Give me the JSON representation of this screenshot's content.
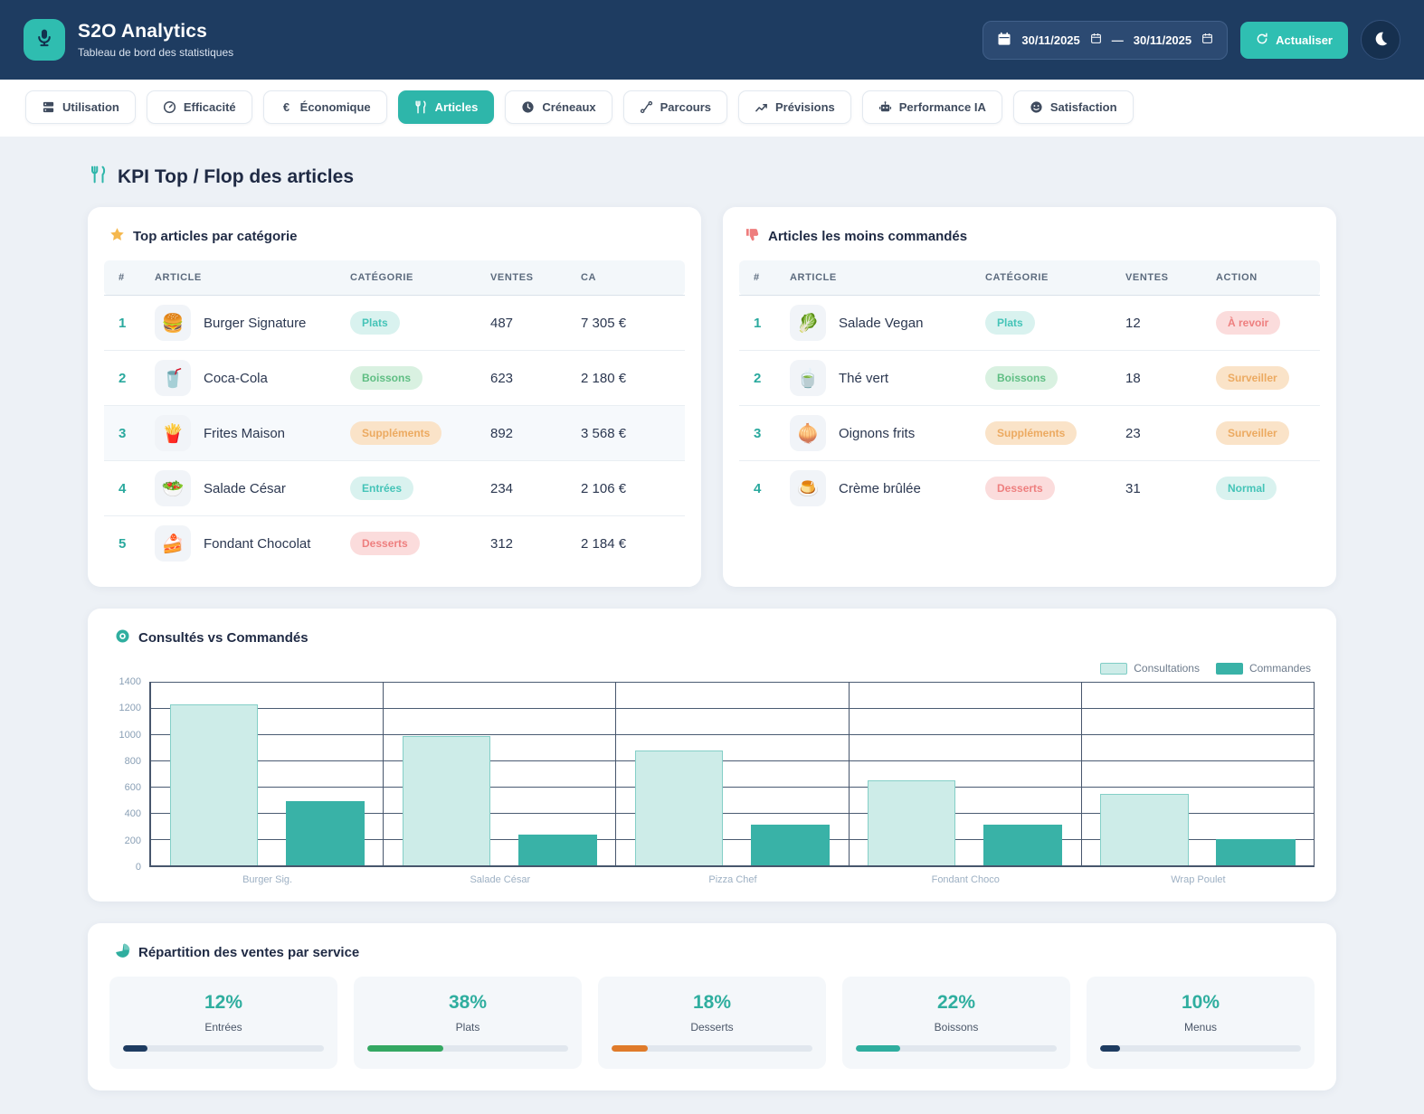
{
  "header": {
    "app_title": "S2O Analytics",
    "subtitle": "Tableau de bord des statistiques",
    "date_from": "30/11/2025",
    "date_to": "30/11/2025",
    "date_separator": "—",
    "refresh_label": "Actualiser",
    "bg_color": "#1e3c61",
    "accent_color": "#2fbdb0"
  },
  "tabs": [
    {
      "id": "utilisation",
      "label": "Utilisation",
      "icon": "server-icon",
      "active": false
    },
    {
      "id": "efficacite",
      "label": "Efficacité",
      "icon": "gauge-icon",
      "active": false
    },
    {
      "id": "economique",
      "label": "Économique",
      "icon": "euro-icon",
      "active": false
    },
    {
      "id": "articles",
      "label": "Articles",
      "icon": "cutlery-icon",
      "active": true
    },
    {
      "id": "creneaux",
      "label": "Créneaux",
      "icon": "clock-icon",
      "active": false
    },
    {
      "id": "parcours",
      "label": "Parcours",
      "icon": "route-icon",
      "active": false
    },
    {
      "id": "previsions",
      "label": "Prévisions",
      "icon": "trend-icon",
      "active": false
    },
    {
      "id": "performance-ia",
      "label": "Performance IA",
      "icon": "robot-icon",
      "active": false
    },
    {
      "id": "satisfaction",
      "label": "Satisfaction",
      "icon": "smiley-icon",
      "active": false
    }
  ],
  "section_title": "KPI Top / Flop des articles",
  "top_articles": {
    "title": "Top articles par catégorie",
    "columns": [
      "#",
      "ARTICLE",
      "CATÉGORIE",
      "VENTES",
      "CA"
    ],
    "rows": [
      {
        "rank": "1",
        "emoji": "🍔",
        "name": "Burger Signature",
        "category": "Plats",
        "category_type": "teal",
        "ventes": "487",
        "ca": "7 305 €",
        "highlight": false
      },
      {
        "rank": "2",
        "emoji": "🥤",
        "name": "Coca-Cola",
        "category": "Boissons",
        "category_type": "green",
        "ventes": "623",
        "ca": "2 180 €",
        "highlight": false
      },
      {
        "rank": "3",
        "emoji": "🍟",
        "name": "Frites Maison",
        "category": "Suppléments",
        "category_type": "orange",
        "ventes": "892",
        "ca": "3 568 €",
        "highlight": true
      },
      {
        "rank": "4",
        "emoji": "🥗",
        "name": "Salade César",
        "category": "Entrées",
        "category_type": "teal",
        "ventes": "234",
        "ca": "2 106 €",
        "highlight": false
      },
      {
        "rank": "5",
        "emoji": "🍰",
        "name": "Fondant Chocolat",
        "category": "Desserts",
        "category_type": "red",
        "ventes": "312",
        "ca": "2 184 €",
        "highlight": false
      }
    ]
  },
  "flop_articles": {
    "title": "Articles les moins commandés",
    "columns": [
      "#",
      "ARTICLE",
      "CATÉGORIE",
      "VENTES",
      "ACTION"
    ],
    "rows": [
      {
        "rank": "1",
        "emoji": "🥬",
        "name": "Salade Vegan",
        "category": "Plats",
        "category_type": "teal",
        "ventes": "12",
        "action": "À revoir",
        "action_type": "red"
      },
      {
        "rank": "2",
        "emoji": "🍵",
        "name": "Thé vert",
        "category": "Boissons",
        "category_type": "green",
        "ventes": "18",
        "action": "Surveiller",
        "action_type": "orange"
      },
      {
        "rank": "3",
        "emoji": "🧅",
        "name": "Oignons frits",
        "category": "Suppléments",
        "category_type": "orange",
        "ventes": "23",
        "action": "Surveiller",
        "action_type": "orange"
      },
      {
        "rank": "4",
        "emoji": "🍮",
        "name": "Crème brûlée",
        "category": "Desserts",
        "category_type": "red",
        "ventes": "31",
        "action": "Normal",
        "action_type": "teal"
      }
    ]
  },
  "chart_data": {
    "type": "bar",
    "title": "Consultés vs Commandés",
    "categories": [
      "Burger Sig.",
      "Salade César",
      "Pizza Chef",
      "Fondant Choco",
      "Wrap Poulet"
    ],
    "series": [
      {
        "name": "Consultations",
        "values": [
          1230,
          985,
          875,
          645,
          545
        ],
        "color": "#cdece8"
      },
      {
        "name": "Commandes",
        "values": [
          487,
          234,
          310,
          312,
          198
        ],
        "color": "#39b2a7"
      }
    ],
    "ylim": [
      0,
      1400
    ],
    "yticks": [
      0,
      200,
      400,
      600,
      800,
      1000,
      1200,
      1400
    ],
    "grid": true,
    "legend_position": "top-right"
  },
  "repartition": {
    "title": "Répartition des ventes par service",
    "items": [
      {
        "percent": "12%",
        "value": 12,
        "label": "Entrées",
        "color": "#1e3c61"
      },
      {
        "percent": "38%",
        "value": 38,
        "label": "Plats",
        "color": "#34a862"
      },
      {
        "percent": "18%",
        "value": 18,
        "label": "Desserts",
        "color": "#e07b2a"
      },
      {
        "percent": "22%",
        "value": 22,
        "label": "Boissons",
        "color": "#2fae9f"
      },
      {
        "percent": "10%",
        "value": 10,
        "label": "Menus",
        "color": "#1e3c61"
      }
    ]
  }
}
